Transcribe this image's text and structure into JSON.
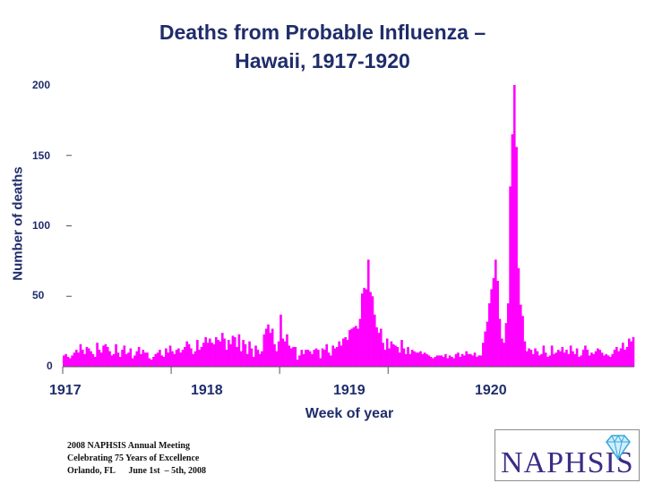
{
  "chart_data": {
    "type": "bar",
    "title_line1": "Deaths from Probable Influenza –",
    "title_line2": "Hawaii, 1917-1920",
    "xlabel": "Week of year",
    "ylabel": "Number of deaths",
    "ylim": [
      0,
      200
    ],
    "yticks": [
      "0",
      "50",
      "100",
      "150",
      "200"
    ],
    "year_labels": [
      "1917",
      "1918",
      "1919",
      "1920"
    ],
    "bar_color": "#ff00ff",
    "values": [
      8,
      9,
      7,
      6,
      8,
      10,
      12,
      10,
      16,
      12,
      9,
      14,
      13,
      11,
      9,
      7,
      17,
      12,
      10,
      15,
      16,
      14,
      11,
      8,
      9,
      16,
      10,
      7,
      12,
      15,
      9,
      10,
      13,
      6,
      8,
      11,
      14,
      9,
      12,
      10,
      10,
      6,
      5,
      7,
      9,
      10,
      12,
      8,
      7,
      13,
      10,
      15,
      11,
      9,
      12,
      13,
      10,
      12,
      14,
      18,
      16,
      13,
      9,
      11,
      19,
      12,
      14,
      17,
      21,
      17,
      20,
      17,
      16,
      21,
      19,
      18,
      24,
      20,
      12,
      19,
      16,
      22,
      21,
      14,
      23,
      11,
      19,
      16,
      9,
      18,
      13,
      7,
      15,
      12,
      9,
      11,
      23,
      27,
      30,
      24,
      27,
      16,
      11,
      18,
      37,
      20,
      18,
      23,
      15,
      13,
      14,
      14,
      5,
      8,
      12,
      9,
      12,
      12,
      11,
      9,
      12,
      13,
      12,
      6,
      13,
      12,
      16,
      10,
      8,
      15,
      13,
      14,
      18,
      15,
      20,
      21,
      19,
      26,
      27,
      28,
      29,
      27,
      34,
      52,
      56,
      55,
      76,
      53,
      50,
      37,
      28,
      24,
      27,
      17,
      12,
      20,
      13,
      18,
      16,
      15,
      14,
      10,
      19,
      13,
      9,
      14,
      9,
      12,
      11,
      10,
      10,
      11,
      9,
      10,
      9,
      8,
      7,
      6,
      7,
      8,
      8,
      8,
      7,
      9,
      6,
      8,
      7,
      6,
      9,
      10,
      7,
      9,
      8,
      11,
      9,
      9,
      8,
      10,
      7,
      8,
      8,
      17,
      25,
      32,
      45,
      55,
      63,
      76,
      61,
      34,
      20,
      17,
      31,
      45,
      128,
      165,
      200,
      156,
      70,
      44,
      36,
      18,
      11,
      13,
      12,
      9,
      13,
      11,
      8,
      9,
      15,
      10,
      7,
      8,
      15,
      9,
      10,
      12,
      11,
      14,
      10,
      12,
      9,
      15,
      11,
      9,
      13,
      7,
      8,
      12,
      15,
      12,
      8,
      10,
      9,
      11,
      13,
      12,
      10,
      8,
      9,
      8,
      7,
      9,
      12,
      14,
      11,
      13,
      17,
      12,
      14,
      20,
      18,
      21
    ]
  },
  "footer": {
    "line1": "2008 NAPHSIS Annual Meeting",
    "line2": "Celebrating 75 Years of Excellence",
    "line3": "Orlando, FL      June 1st  – 5th, 2008"
  },
  "logo": {
    "text": "NAPHSIS"
  }
}
